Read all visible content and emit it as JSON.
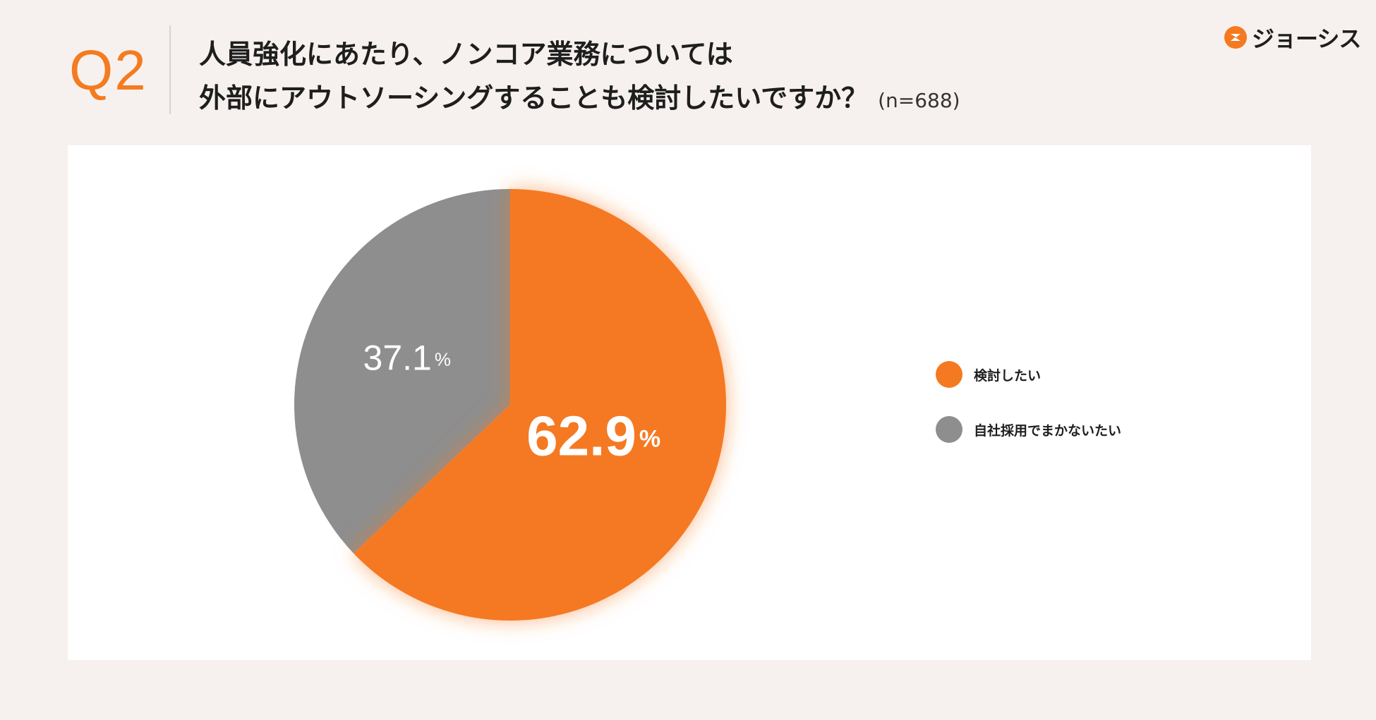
{
  "header": {
    "question_number": "Q2",
    "question_line1": "人員強化にあたり、ノンコア業務については",
    "question_line2": "外部にアウトソーシングすることも検討したいですか？",
    "sample_size": "(n=688)"
  },
  "logo": {
    "text": "ジョーシス",
    "icon": "joshys-logo-icon"
  },
  "colors": {
    "accent": "#f57920",
    "gray": "#8e8e8e",
    "background": "#f6f1ee"
  },
  "chart_data": {
    "type": "pie",
    "title": "",
    "unit": "%",
    "start_angle_deg": 0,
    "direction": "clockwise",
    "slices": [
      {
        "name": "検討したい",
        "value": 62.9,
        "value_text": "62.9",
        "color": "#f57920",
        "label_style": "bold"
      },
      {
        "name": "自社採用でまかないたい",
        "value": 37.1,
        "value_text": "37.1",
        "color": "#8e8e8e",
        "label_style": "light"
      }
    ],
    "legend_position": "right"
  }
}
